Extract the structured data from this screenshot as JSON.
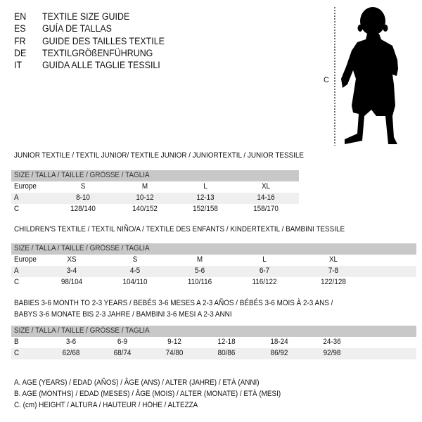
{
  "languages": [
    {
      "code": "EN",
      "text": "TEXTILE SIZE GUIDE"
    },
    {
      "code": "ES",
      "text": "GUÍA DE TALLAS"
    },
    {
      "code": "FR",
      "text": "GUIDE DES TAILLES TEXTILE"
    },
    {
      "code": "DE",
      "text": "TEXTILGRÖßENFÜHRUNG"
    },
    {
      "code": "IT",
      "text": "GUIDA ALLE TAGLIE TESSILI"
    }
  ],
  "figure": {
    "height_label": "C",
    "icon": "child-silhouette"
  },
  "header_label": "SIZE / TALLA / TAILLE / GRÖSSE / TAGLIA",
  "junior": {
    "title": "JUNIOR TEXTILE / TEXTIL JUNIOR/ TEXTILE JUNIOR / JUNIORTEXTIL / JUNIOR TESSILE",
    "rows": [
      {
        "label": "Europe",
        "cells": [
          "S",
          "M",
          "L",
          "XL"
        ]
      },
      {
        "label": "A",
        "cells": [
          "8-10",
          "10-12",
          "12-13",
          "14-16"
        ]
      },
      {
        "label": "C",
        "cells": [
          "128/140",
          "140/152",
          "152/158",
          "158/170"
        ]
      }
    ]
  },
  "children": {
    "title": "CHILDREN'S TEXTILE / TEXTIL NIÑO/A / TEXTILE DES ENFANTS / KINDERTEXTIL / BAMBINI TESSILE",
    "rows": [
      {
        "label": "Europe",
        "cells": [
          "XS",
          "S",
          "M",
          "L",
          "XL"
        ]
      },
      {
        "label": "A",
        "cells": [
          "3-4",
          "4-5",
          "5-6",
          "6-7",
          "7-8"
        ]
      },
      {
        "label": "C",
        "cells": [
          "98/104",
          "104/110",
          "110/116",
          "116/122",
          "122/128"
        ]
      }
    ]
  },
  "babies": {
    "title_line1": "BABIES 3-6 MONTH TO 2-3 YEARS / BEBÉS 3-6 MESES A 2-3 AÑOS / BÉBÉS 3-6 MOIS À 2-3 ANS /",
    "title_line2": "BABYS 3-6 MONATE BIS 2-3 JAHRE / BAMBINI 3-6 MESI A 2-3 ANNI",
    "rows": [
      {
        "label": "B",
        "cells": [
          "3-6",
          "6-9",
          "9-12",
          "12-18",
          "18-24",
          "24-36"
        ]
      },
      {
        "label": "C",
        "cells": [
          "62/68",
          "68/74",
          "74/80",
          "80/86",
          "86/92",
          "92/98"
        ]
      }
    ]
  },
  "legend": [
    "A. AGE (YEARS) / EDAD (AÑOS) / ÂGE (ANS) / ALTER (JAHRE) / ETÀ (ANNI)",
    "B. AGE (MONTHS) / EDAD (MESES) / ÂGE (MOIS) / ALTER (MONATE) / ETÀ (MESI)",
    "C. (cm) HEIGHT / ALTURA / HAUTEUR / HÖHE / ALTEZZA"
  ]
}
